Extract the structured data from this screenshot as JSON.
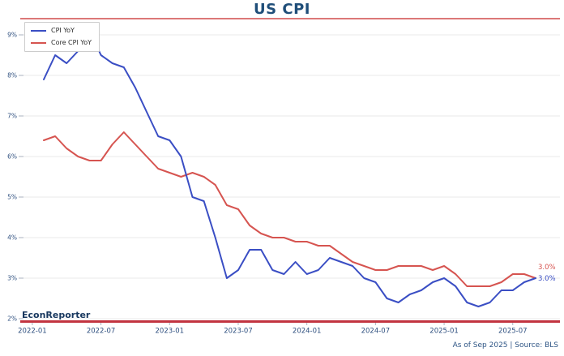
{
  "title": "US CPI",
  "branding": "EconReporter",
  "footnote": "As of Sep 2025 | Source: BLS",
  "legend": [
    {
      "label": "CPI YoY",
      "color": "#3a4ec4"
    },
    {
      "label": "Core CPI YoY",
      "color": "#d65450"
    }
  ],
  "end_labels": [
    {
      "text": "3.0%",
      "color": "#d65450"
    },
    {
      "text": "3.0%",
      "color": "#3a4ec4"
    }
  ],
  "colors": {
    "title": "#1f4e79",
    "axis_label": "#2e4f7f",
    "tick_mark": "#a9b2bf",
    "grid": "#e8e8e8",
    "rule_top": "#d14c4c",
    "rule_bottom": "#c23440"
  },
  "chart_data": {
    "type": "line",
    "title": "US CPI",
    "xlabel": "",
    "ylabel": "",
    "ylim": [
      2,
      9
    ],
    "grid": true,
    "legend_position": "upper-left",
    "x": [
      "2022-02",
      "2022-03",
      "2022-04",
      "2022-05",
      "2022-06",
      "2022-07",
      "2022-08",
      "2022-09",
      "2022-10",
      "2022-11",
      "2022-12",
      "2023-01",
      "2023-02",
      "2023-03",
      "2023-04",
      "2023-05",
      "2023-06",
      "2023-07",
      "2023-08",
      "2023-09",
      "2023-10",
      "2023-11",
      "2023-12",
      "2024-01",
      "2024-02",
      "2024-03",
      "2024-04",
      "2024-05",
      "2024-06",
      "2024-07",
      "2024-08",
      "2024-09",
      "2024-10",
      "2024-11",
      "2024-12",
      "2025-01",
      "2025-02",
      "2025-03",
      "2025-04",
      "2025-05",
      "2025-06",
      "2025-07",
      "2025-08",
      "2025-09"
    ],
    "series": [
      {
        "name": "CPI YoY",
        "color": "#3a4ec4",
        "values": [
          7.9,
          8.5,
          8.3,
          8.6,
          9.1,
          8.5,
          8.3,
          8.2,
          7.7,
          7.1,
          6.5,
          6.4,
          6.0,
          5.0,
          4.9,
          4.0,
          3.0,
          3.2,
          3.7,
          3.7,
          3.2,
          3.1,
          3.4,
          3.1,
          3.2,
          3.5,
          3.4,
          3.3,
          3.0,
          2.9,
          2.5,
          2.4,
          2.6,
          2.7,
          2.9,
          3.0,
          2.8,
          2.4,
          2.3,
          2.4,
          2.7,
          2.7,
          2.9,
          3.0
        ]
      },
      {
        "name": "Core CPI YoY",
        "color": "#d65450",
        "values": [
          6.4,
          6.5,
          6.2,
          6.0,
          5.9,
          5.9,
          6.3,
          6.6,
          6.3,
          6.0,
          5.7,
          5.6,
          5.5,
          5.6,
          5.5,
          5.3,
          4.8,
          4.7,
          4.3,
          4.1,
          4.0,
          4.0,
          3.9,
          3.9,
          3.8,
          3.8,
          3.6,
          3.4,
          3.3,
          3.2,
          3.2,
          3.3,
          3.3,
          3.3,
          3.2,
          3.3,
          3.1,
          2.8,
          2.8,
          2.8,
          2.9,
          3.1,
          3.1,
          3.0
        ]
      }
    ],
    "yticks": [
      "2%",
      "3%",
      "4%",
      "5%",
      "6%",
      "7%",
      "8%",
      "9%"
    ],
    "xticks": [
      "2022-01",
      "2022-07",
      "2023-01",
      "2023-07",
      "2024-01",
      "2024-07",
      "2025-01",
      "2025-07"
    ],
    "annotations": [
      {
        "text": "3.0%",
        "series": "Core CPI YoY",
        "position": "line-end"
      },
      {
        "text": "3.0%",
        "series": "CPI YoY",
        "position": "line-end"
      }
    ]
  }
}
